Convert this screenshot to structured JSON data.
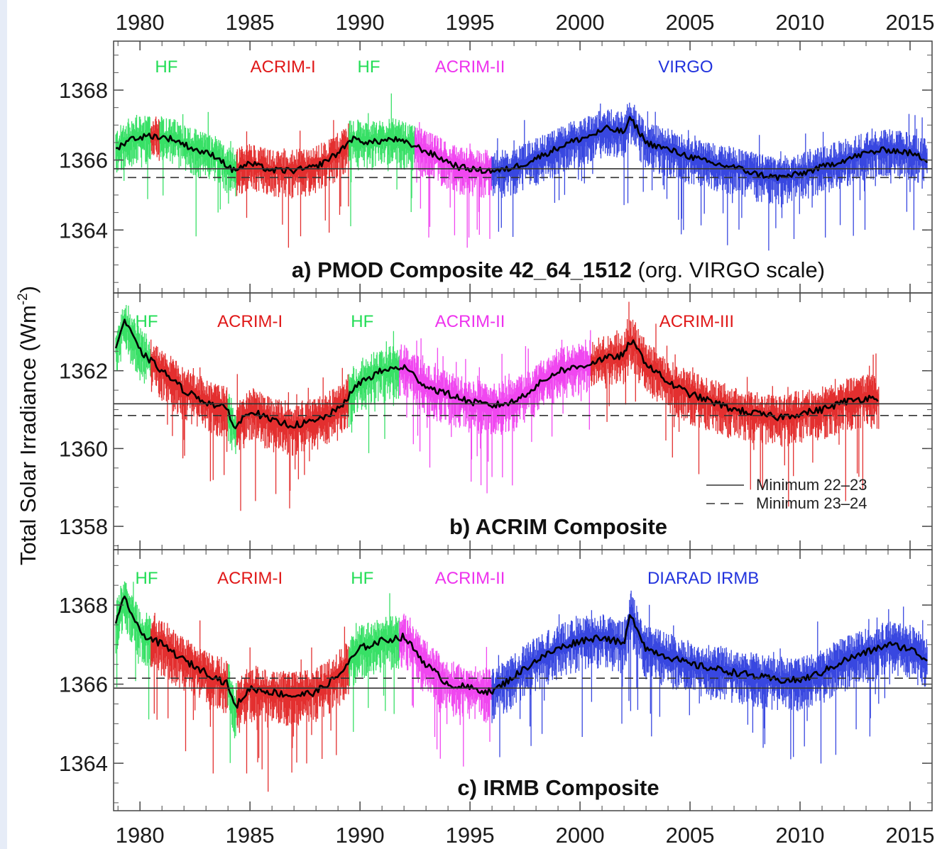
{
  "chart_data": {
    "type": "line",
    "ylabel_base": "Total Solar Irradiance (Wm",
    "ylabel_sup": "-2",
    "ylabel_end": ")",
    "x_ticks": [
      "1980",
      "1985",
      "1990",
      "1995",
      "2000",
      "2005",
      "2010",
      "2015"
    ],
    "xlim": [
      1978.8,
      2016
    ],
    "legend": {
      "position": "lower-right of panel b",
      "entries": [
        {
          "label": "Minimum 22–23",
          "style": "solid"
        },
        {
          "label": "Minimum 23–24",
          "style": "dashed"
        }
      ]
    },
    "colors": {
      "HF": "#22dd55",
      "ACRIM": "#e01818",
      "ACRIM-II": "#ee33ee",
      "VIRGO": "#2233dd",
      "composite": "#000000"
    },
    "panels": [
      {
        "title": "a) PMOD Composite 42_64_1512",
        "title_suffix": "(org. VIRGO scale)",
        "ylim": [
          1362.2,
          1369.4
        ],
        "yticks": [
          1364,
          1366,
          1368
        ],
        "min_22_23": 1365.75,
        "min_23_24": 1365.5,
        "instruments": [
          {
            "label": "HF",
            "x": 1981.2,
            "color": "#22dd55"
          },
          {
            "label": "ACRIM-I",
            "x": 1986.5,
            "color": "#e01818"
          },
          {
            "label": "HF",
            "x": 1990.4,
            "color": "#22dd55"
          },
          {
            "label": "ACRIM-II",
            "x": 1995.0,
            "color": "#ee33ee"
          },
          {
            "label": "VIRGO",
            "x": 2004.8,
            "color": "#2233dd"
          }
        ],
        "segments": [
          {
            "from": 1978.9,
            "to": 1980.5,
            "color": "#22dd55"
          },
          {
            "from": 1980.5,
            "to": 1980.9,
            "color": "#e01818"
          },
          {
            "from": 1980.9,
            "to": 1984.0,
            "color": "#22dd55"
          },
          {
            "from": 1984.0,
            "to": 1984.4,
            "color": "#22dd55"
          },
          {
            "from": 1984.4,
            "to": 1989.5,
            "color": "#e01818"
          },
          {
            "from": 1989.5,
            "to": 1992.5,
            "color": "#22dd55"
          },
          {
            "from": 1992.5,
            "to": 1996.0,
            "color": "#ee33ee"
          },
          {
            "from": 1996.0,
            "to": 2016.0,
            "color": "#2233dd"
          }
        ],
        "composite": {
          "x": [
            1978.9,
            1979.5,
            1980.5,
            1981.5,
            1982.5,
            1983.5,
            1984.2,
            1985,
            1986,
            1987,
            1988,
            1989,
            1989.6,
            1990.5,
            1991.5,
            1992.5,
            1993.5,
            1994.5,
            1995.5,
            1996.5,
            1997.5,
            1998.5,
            1999.5,
            2000.5,
            2001.2,
            2002,
            2002.3,
            2003,
            2004,
            2005,
            2006,
            2007,
            2008,
            2009,
            2010,
            2011,
            2012,
            2013,
            2014,
            2015,
            2015.8
          ],
          "y": [
            1366.3,
            1366.6,
            1366.7,
            1366.6,
            1366.3,
            1366.1,
            1365.7,
            1365.9,
            1365.7,
            1365.7,
            1365.8,
            1366.2,
            1366.6,
            1366.5,
            1366.6,
            1366.4,
            1366.1,
            1365.8,
            1365.7,
            1365.7,
            1365.9,
            1366.2,
            1366.5,
            1366.7,
            1366.9,
            1366.8,
            1367.2,
            1366.5,
            1366.3,
            1366.1,
            1365.9,
            1365.8,
            1365.6,
            1365.5,
            1365.6,
            1365.8,
            1366.0,
            1366.2,
            1366.3,
            1366.2,
            1366.0
          ]
        }
      },
      {
        "title": "b) ACRIM Composite",
        "title_suffix": "",
        "ylim": [
          1357.4,
          1364.0
        ],
        "yticks": [
          1358,
          1360,
          1362
        ],
        "min_22_23": 1361.15,
        "min_23_24": 1360.85,
        "instruments": [
          {
            "label": "HF",
            "x": 1980.3,
            "color": "#22dd55"
          },
          {
            "label": "ACRIM-I",
            "x": 1985.0,
            "color": "#e01818"
          },
          {
            "label": "HF",
            "x": 1990.1,
            "color": "#22dd55"
          },
          {
            "label": "ACRIM-II",
            "x": 1995.0,
            "color": "#ee33ee"
          },
          {
            "label": "ACRIM-III",
            "x": 2005.3,
            "color": "#e01818"
          }
        ],
        "segments": [
          {
            "from": 1978.9,
            "to": 1980.5,
            "color": "#22dd55"
          },
          {
            "from": 1980.5,
            "to": 1984.0,
            "color": "#e01818"
          },
          {
            "from": 1984.0,
            "to": 1984.4,
            "color": "#22dd55"
          },
          {
            "from": 1984.4,
            "to": 1989.5,
            "color": "#e01818"
          },
          {
            "from": 1989.5,
            "to": 1991.8,
            "color": "#22dd55"
          },
          {
            "from": 1991.8,
            "to": 2000.5,
            "color": "#ee33ee"
          },
          {
            "from": 2000.5,
            "to": 2013.6,
            "color": "#e01818"
          }
        ],
        "composite": {
          "x": [
            1978.9,
            1979.3,
            1980,
            1981,
            1982,
            1983,
            1984,
            1984.3,
            1985,
            1986,
            1987,
            1988,
            1989,
            1990,
            1991,
            1992,
            1993,
            1994,
            1995,
            1996,
            1997,
            1998,
            1999,
            2000,
            2001,
            2002,
            2002.3,
            2003,
            2004,
            2005,
            2006,
            2007,
            2008,
            2009,
            2010,
            2011,
            2012,
            2013,
            2013.6
          ],
          "y": [
            1362.6,
            1363.3,
            1362.5,
            1362.0,
            1361.5,
            1361.2,
            1361.0,
            1360.5,
            1361.0,
            1360.7,
            1360.6,
            1360.7,
            1361.0,
            1361.7,
            1362.0,
            1362.1,
            1361.6,
            1361.4,
            1361.2,
            1361.1,
            1361.2,
            1361.6,
            1362.0,
            1362.1,
            1362.3,
            1362.4,
            1362.8,
            1362.2,
            1361.7,
            1361.4,
            1361.2,
            1361.0,
            1360.9,
            1360.8,
            1360.9,
            1361.0,
            1361.2,
            1361.3,
            1361.3
          ]
        }
      },
      {
        "title": "c) IRMB Composite",
        "title_suffix": "",
        "ylim": [
          1362.8,
          1369.4
        ],
        "yticks": [
          1364,
          1366,
          1368
        ],
        "min_22_23": 1365.9,
        "min_23_24": 1366.15,
        "instruments": [
          {
            "label": "HF",
            "x": 1980.3,
            "color": "#22dd55"
          },
          {
            "label": "ACRIM-I",
            "x": 1985.0,
            "color": "#e01818"
          },
          {
            "label": "HF",
            "x": 1990.1,
            "color": "#22dd55"
          },
          {
            "label": "ACRIM-II",
            "x": 1995.0,
            "color": "#ee33ee"
          },
          {
            "label": "DIARAD IRMB",
            "x": 2005.6,
            "color": "#2233dd"
          }
        ],
        "segments": [
          {
            "from": 1978.9,
            "to": 1980.5,
            "color": "#22dd55"
          },
          {
            "from": 1980.5,
            "to": 1984.0,
            "color": "#e01818"
          },
          {
            "from": 1984.0,
            "to": 1984.4,
            "color": "#22dd55"
          },
          {
            "from": 1984.4,
            "to": 1989.5,
            "color": "#e01818"
          },
          {
            "from": 1989.5,
            "to": 1991.8,
            "color": "#22dd55"
          },
          {
            "from": 1991.8,
            "to": 1996.0,
            "color": "#ee33ee"
          },
          {
            "from": 1996.0,
            "to": 2016.0,
            "color": "#2233dd"
          }
        ],
        "composite": {
          "x": [
            1978.9,
            1979.3,
            1980,
            1981,
            1982,
            1983,
            1984,
            1984.3,
            1985,
            1986,
            1987,
            1988,
            1989,
            1990,
            1991,
            1992,
            1993,
            1994,
            1995,
            1996,
            1997,
            1998,
            1999,
            2000,
            2001,
            2002,
            2002.3,
            2003,
            2004,
            2005,
            2006,
            2007,
            2008,
            2009,
            2010,
            2011,
            2012,
            2013,
            2014,
            2015,
            2015.8
          ],
          "y": [
            1367.5,
            1368.2,
            1367.3,
            1367.0,
            1366.6,
            1366.3,
            1366.0,
            1365.4,
            1365.9,
            1365.8,
            1365.7,
            1365.8,
            1366.2,
            1366.9,
            1367.1,
            1367.2,
            1366.5,
            1366.0,
            1365.9,
            1365.8,
            1366.2,
            1366.6,
            1366.9,
            1367.1,
            1367.2,
            1367.0,
            1367.8,
            1366.9,
            1366.7,
            1366.5,
            1366.4,
            1366.3,
            1366.2,
            1366.1,
            1366.1,
            1366.3,
            1366.6,
            1366.8,
            1367.0,
            1366.9,
            1366.6
          ]
        }
      }
    ]
  }
}
